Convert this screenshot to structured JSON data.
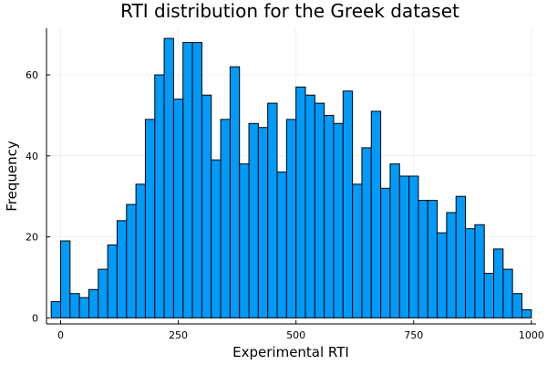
{
  "chart_data": {
    "type": "bar",
    "title": "RTI distribution for the Greek dataset",
    "xlabel": "Experimental RTI",
    "ylabel": "Frequency",
    "bin_start": -20,
    "bin_width": 20,
    "values": [
      4,
      19,
      6,
      5,
      7,
      12,
      18,
      24,
      28,
      33,
      49,
      60,
      69,
      54,
      68,
      68,
      55,
      39,
      49,
      62,
      38,
      48,
      47,
      53,
      36,
      49,
      57,
      55,
      53,
      50,
      48,
      56,
      33,
      42,
      51,
      32,
      38,
      35,
      35,
      29,
      29,
      21,
      26,
      30,
      22,
      23,
      11,
      17,
      12,
      6,
      2
    ],
    "xlim": [
      -30,
      1010
    ],
    "ylim": [
      -1.5,
      71.5
    ],
    "xticks": [
      0,
      250,
      500,
      750,
      1000
    ],
    "yticks": [
      0,
      20,
      40,
      60
    ],
    "grid": true,
    "legend": "none",
    "bar_color": "#009AF9"
  }
}
